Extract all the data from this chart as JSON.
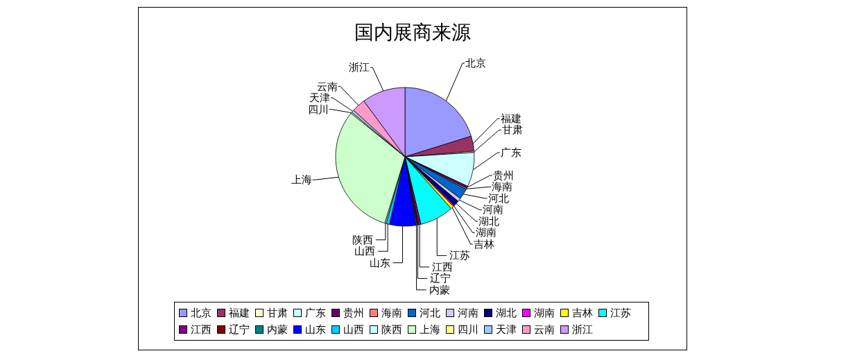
{
  "chart_data": {
    "type": "pie",
    "title": "国内展商来源",
    "categories": [
      "北京",
      "福建",
      "甘肃",
      "广东",
      "贵州",
      "海南",
      "河北",
      "河南",
      "湖北",
      "湖南",
      "吉林",
      "江苏",
      "江西",
      "辽宁",
      "内蒙",
      "山东",
      "山西",
      "陕西",
      "上海",
      "四川",
      "天津",
      "云南",
      "浙江"
    ],
    "values": [
      20.2,
      3.5,
      0.3,
      8,
      0.5,
      0.3,
      2.5,
      0.8,
      1.3,
      0.3,
      0.7,
      7.9,
      0.6,
      0.3,
      0.3,
      6.1,
      0.8,
      0.3,
      31.1,
      0.3,
      0.6,
      3.2,
      10.1
    ],
    "colors": [
      "#9999ff",
      "#993366",
      "#ffffcc",
      "#ccffff",
      "#660066",
      "#ff8080",
      "#0066cc",
      "#ccccff",
      "#000080",
      "#ff00ff",
      "#ffff00",
      "#00ffff",
      "#800080",
      "#800000",
      "#008080",
      "#0000ff",
      "#00ccff",
      "#ccffff",
      "#ccffcc",
      "#ffff99",
      "#99ccff",
      "#ff99cc",
      "#cc99ff"
    ],
    "legend": "bottom"
  }
}
